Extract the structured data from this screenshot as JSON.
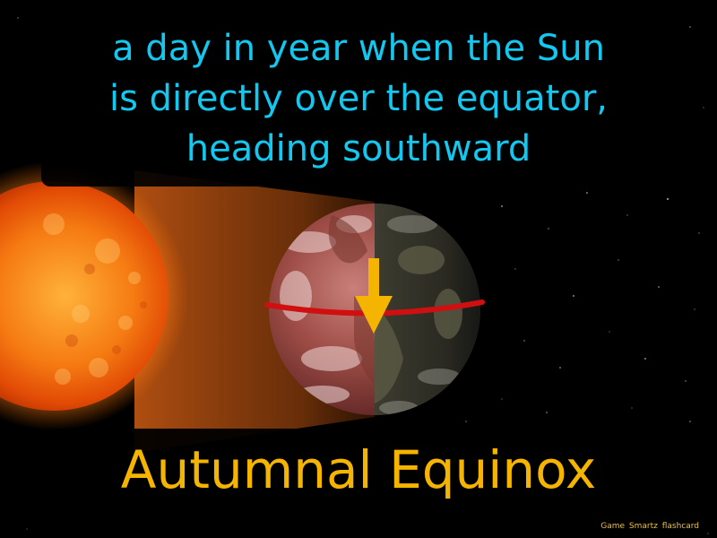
{
  "definition": {
    "lines": [
      "a day in year when the Sun",
      "is directly over the equator,",
      "heading southward"
    ]
  },
  "term": "Autumnal Equinox",
  "credit": "Game Smartz flashcard",
  "colors": {
    "definition_text": "#12c8f0",
    "term_text": "#f5b400",
    "background": "#000000",
    "equator_line": "#d01010",
    "arrow": "#f5b400"
  }
}
